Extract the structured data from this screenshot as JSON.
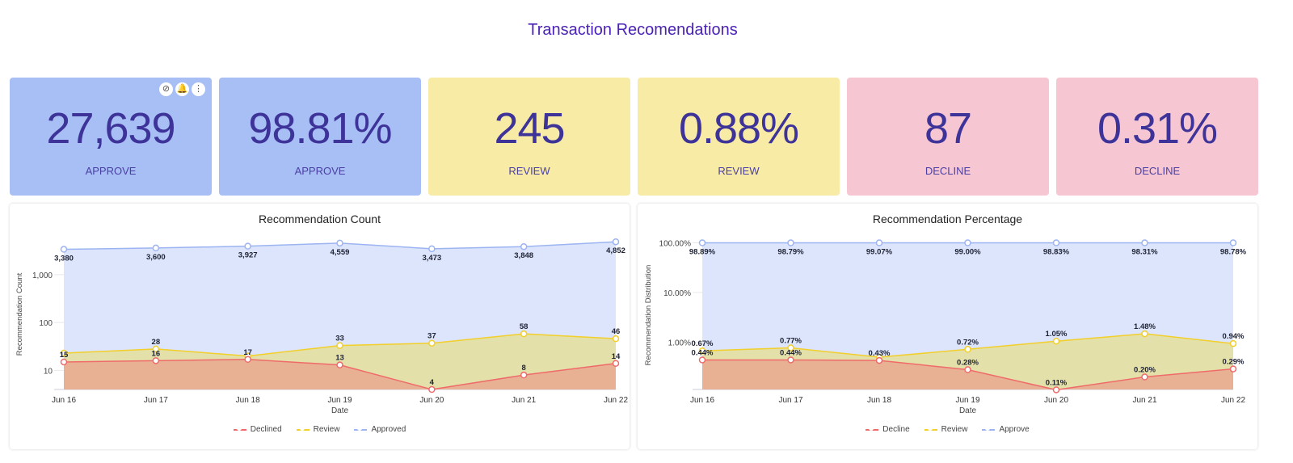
{
  "title": "Transaction Recomendations",
  "card_icons": [
    "compass-icon",
    "bell-plus-icon",
    "more-vertical-icon"
  ],
  "cards": [
    {
      "value": "27,639",
      "label": "APPROVE",
      "color": "blue"
    },
    {
      "value": "98.81%",
      "label": "APPROVE",
      "color": "blue"
    },
    {
      "value": "245",
      "label": "REVIEW",
      "color": "yellow"
    },
    {
      "value": "0.88%",
      "label": "REVIEW",
      "color": "yellow"
    },
    {
      "value": "87",
      "label": "DECLINE",
      "color": "pink"
    },
    {
      "value": "0.31%",
      "label": "DECLINE",
      "color": "pink"
    }
  ],
  "chart_data": [
    {
      "type": "area",
      "title": "Recommendation Count",
      "xlabel": "Date",
      "ylabel": "Recommendation Count",
      "yscale": "log",
      "ylim": [
        4,
        5500
      ],
      "yticks": [
        {
          "v": 10,
          "t": "10"
        },
        {
          "v": 100,
          "t": "100"
        },
        {
          "v": 1000,
          "t": "1,000"
        }
      ],
      "categories": [
        "Jun 16",
        "Jun 17",
        "Jun 18",
        "Jun 19",
        "Jun 20",
        "Jun 21",
        "Jun 22"
      ],
      "series": [
        {
          "name": "Approved",
          "color": "#9db4f2",
          "fill": "#dce5fb",
          "values": [
            3380,
            3600,
            3927,
            4559,
            3473,
            3848,
            4852
          ],
          "labels": [
            "3,380",
            "3,600",
            "3,927",
            "4,559",
            "3,473",
            "3,848",
            "4,852"
          ],
          "label_pos": "below"
        },
        {
          "name": "Review",
          "color": "#f2cf2a",
          "fill": "#e4e0a9",
          "values": [
            23,
            28,
            20,
            33,
            37,
            58,
            46
          ],
          "labels": [
            null,
            "28",
            null,
            "33",
            "37",
            "58",
            "46"
          ],
          "label_pos": "above"
        },
        {
          "name": "Declined",
          "color": "#ef6b6b",
          "fill": "#e8b193",
          "values": [
            15,
            16,
            17,
            13,
            4,
            8,
            14
          ],
          "labels": [
            "15",
            "16",
            "17",
            "13",
            "4",
            "8",
            "14"
          ],
          "label_pos": "above"
        }
      ],
      "legend": [
        "Declined",
        "Review",
        "Approved"
      ],
      "legend_position": "bottom"
    },
    {
      "type": "area",
      "title": "Recommendation Percentage",
      "xlabel": "Date",
      "ylabel": "Recommendation Distribution",
      "yscale": "log",
      "ylim": [
        0.112,
        110
      ],
      "yticks": [
        {
          "v": 1,
          "t": "1.00%"
        },
        {
          "v": 10,
          "t": "10.00%"
        },
        {
          "v": 100,
          "t": "100.00%"
        }
      ],
      "categories": [
        "Jun 16",
        "Jun 17",
        "Jun 18",
        "Jun 19",
        "Jun 20",
        "Jun 21",
        "Jun 22"
      ],
      "series": [
        {
          "name": "Approve",
          "color": "#9db4f2",
          "fill": "#dce5fb",
          "values": [
            100,
            100,
            100,
            100,
            100,
            100,
            100
          ],
          "labels": [
            "98.89%",
            "98.79%",
            "99.07%",
            "99.00%",
            "98.83%",
            "98.31%",
            "98.78%"
          ],
          "label_pos": "below"
        },
        {
          "name": "Review",
          "color": "#f2cf2a",
          "fill": "#e4e0a9",
          "values": [
            0.67,
            0.77,
            0.5,
            0.72,
            1.05,
            1.48,
            0.94
          ],
          "labels": [
            "0.67%",
            "0.77%",
            null,
            "0.72%",
            "1.05%",
            "1.48%",
            "0.94%"
          ],
          "label_pos": "above"
        },
        {
          "name": "Decline",
          "color": "#ef6b6b",
          "fill": "#e8b193",
          "values": [
            0.44,
            0.44,
            0.43,
            0.28,
            0.11,
            0.2,
            0.29
          ],
          "labels": [
            "0.44%",
            "0.44%",
            "0.43%",
            "0.28%",
            "0.11%",
            "0.20%",
            "0.29%"
          ],
          "label_pos": "above"
        }
      ],
      "legend": [
        "Decline",
        "Review",
        "Approve"
      ],
      "legend_position": "bottom"
    }
  ]
}
